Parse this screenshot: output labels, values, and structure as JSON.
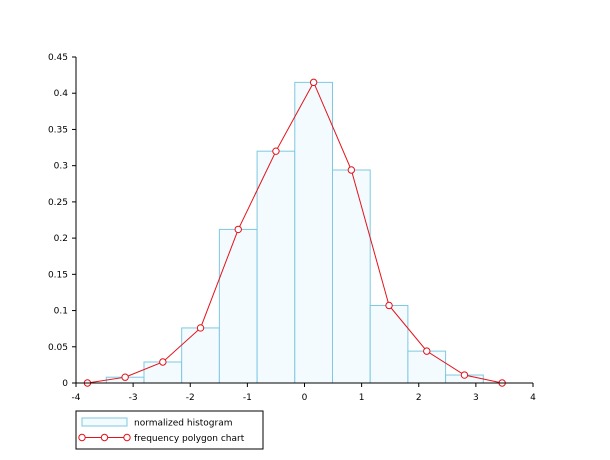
{
  "chart_data": {
    "type": "bar",
    "xlim": [
      -4,
      4
    ],
    "ylim": [
      0,
      0.45
    ],
    "x_ticks": [
      -4,
      -3,
      -2,
      -1,
      0,
      1,
      2,
      3,
      4
    ],
    "y_ticks": [
      0,
      0.05,
      0.1,
      0.15,
      0.2,
      0.25,
      0.3,
      0.35,
      0.4,
      0.45
    ],
    "x_tick_labels": [
      "-4",
      "-3",
      "-2",
      "-1",
      "0",
      "1",
      "2",
      "3",
      "4"
    ],
    "y_tick_labels": [
      "0",
      "0.05",
      "0.1",
      "0.15",
      "0.2",
      "0.25",
      "0.3",
      "0.35",
      "0.4",
      "0.45"
    ],
    "grid": false,
    "legend_position": "bottom-left",
    "series": [
      {
        "name": "normalized histogram",
        "type": "bar",
        "color": "#7ec8e0",
        "fill": "#f4fbfe",
        "bin_edges": [
          -3.47,
          -2.81,
          -2.15,
          -1.49,
          -0.83,
          -0.17,
          0.49,
          1.15,
          1.81,
          2.47,
          3.13
        ],
        "values": [
          0.008,
          0.029,
          0.076,
          0.212,
          0.32,
          0.415,
          0.294,
          0.107,
          0.044,
          0.011
        ]
      },
      {
        "name": "frequency polygon chart",
        "type": "line",
        "color": "#e4121b",
        "marker": "circle",
        "x": [
          -3.8,
          -3.14,
          -2.48,
          -1.82,
          -1.16,
          -0.5,
          0.16,
          0.82,
          1.48,
          2.14,
          2.8,
          3.46
        ],
        "y": [
          0,
          0.008,
          0.029,
          0.076,
          0.212,
          0.32,
          0.415,
          0.294,
          0.107,
          0.044,
          0.011,
          0
        ]
      }
    ]
  }
}
